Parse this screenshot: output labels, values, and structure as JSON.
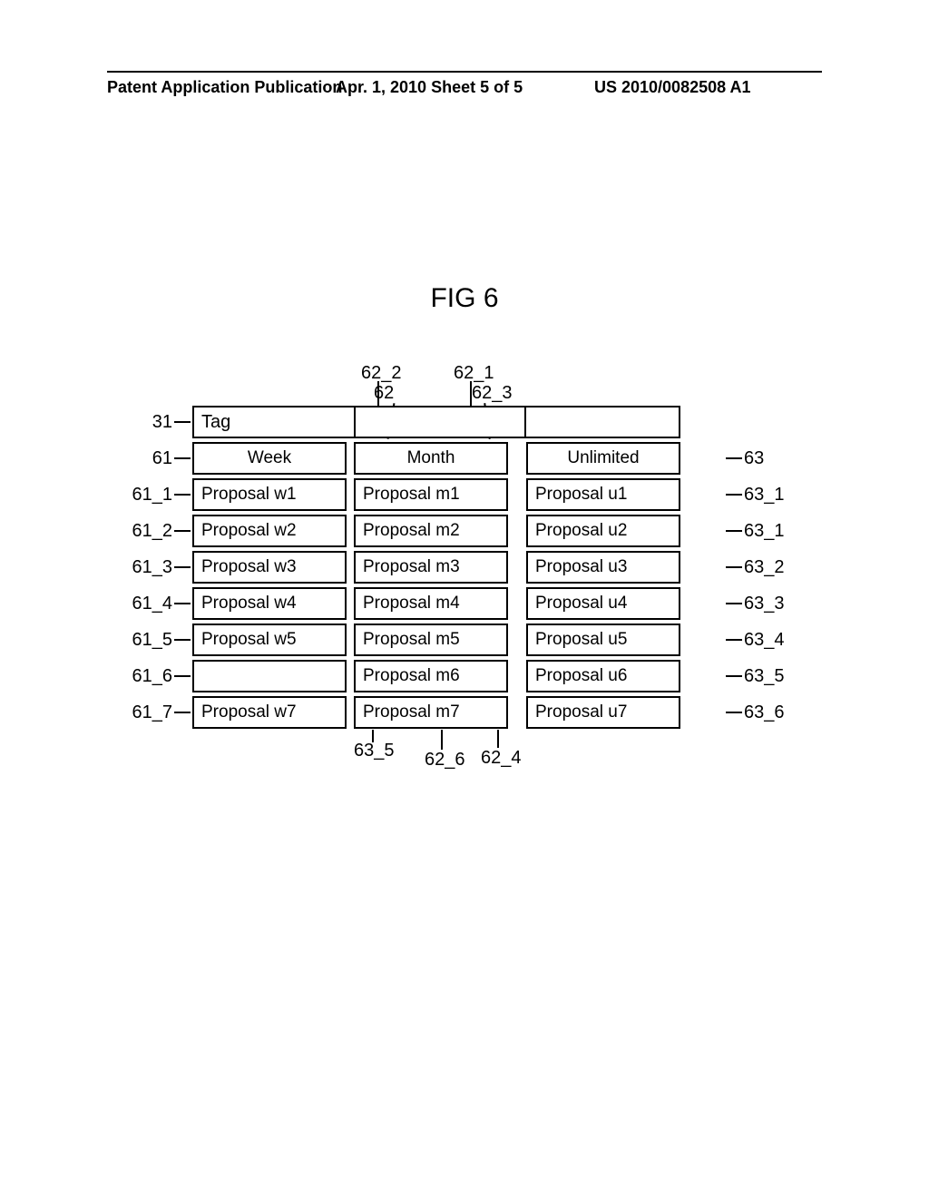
{
  "header": {
    "left": "Patent Application Publication",
    "mid": "Apr. 1, 2010  Sheet 5 of 5",
    "right": "US 2010/0082508 A1"
  },
  "figTitle": "FIG 6",
  "topLabels": {
    "a": "62_2",
    "b": "62_1",
    "c": "62",
    "d": "62_3"
  },
  "bottomLabels": {
    "a": "63_5",
    "b": "62_6",
    "c": "62_4"
  },
  "rows": [
    {
      "left": "31",
      "c1": "Tag",
      "c2": "",
      "c3": "",
      "right": "",
      "tag": true
    },
    {
      "left": "61",
      "c1": "Week",
      "c2": "Month",
      "c3": "Unlimited",
      "right": "63",
      "center": true
    },
    {
      "left": "61_1",
      "c1": "Proposal w1",
      "c2": "Proposal m1",
      "c3": "Proposal u1",
      "right": "63_1"
    },
    {
      "left": "61_2",
      "c1": "Proposal w2",
      "c2": "Proposal m2",
      "c3": "Proposal u2",
      "right": "63_1"
    },
    {
      "left": "61_3",
      "c1": "Proposal w3",
      "c2": "Proposal m3",
      "c3": "Proposal u3",
      "right": "63_2"
    },
    {
      "left": "61_4",
      "c1": "Proposal w4",
      "c2": "Proposal m4",
      "c3": "Proposal u4",
      "right": "63_3"
    },
    {
      "left": "61_5",
      "c1": "Proposal w5",
      "c2": "Proposal m5",
      "c3": "Proposal u5",
      "right": "63_4"
    },
    {
      "left": "61_6",
      "c1": "",
      "c2": "Proposal m6",
      "c3": "Proposal u6",
      "right": "63_5"
    },
    {
      "left": "61_7",
      "c1": "Proposal w7",
      "c2": "Proposal m7",
      "c3": "Proposal u7",
      "right": "63_6"
    }
  ]
}
